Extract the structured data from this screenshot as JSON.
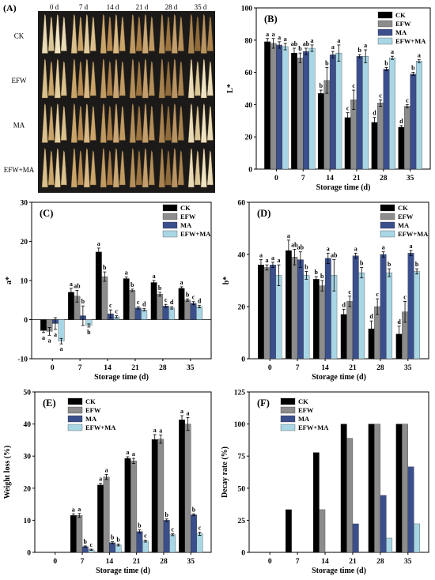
{
  "panel_a": {
    "label": "(A)",
    "columns": [
      "0 d",
      "7 d",
      "14 d",
      "21 d",
      "28 d",
      "35 d"
    ],
    "rows": [
      "CK",
      "EFW",
      "MA",
      "EFW+MA"
    ]
  },
  "chart_data": [
    {
      "panel": "(B)",
      "type": "bar",
      "categories": [
        "0",
        "7",
        "14",
        "21",
        "28",
        "35"
      ],
      "xlabel": "Storage time (d)",
      "ylabel": "L*",
      "ylim": [
        0,
        100
      ],
      "yticks": [
        0,
        20,
        40,
        60,
        80,
        100
      ],
      "legend_position": "top-right",
      "series": [
        {
          "name": "CK",
          "color": "#000000",
          "values": [
            79,
            72,
            47,
            32,
            29,
            26
          ],
          "errors": [
            2,
            3,
            2,
            3,
            3,
            1
          ],
          "letters": [
            "a",
            "ab",
            "b",
            "c",
            "d",
            "d"
          ]
        },
        {
          "name": "EFW",
          "color": "#8c8c8c",
          "values": [
            78,
            69,
            55,
            43,
            41,
            39
          ],
          "errors": [
            3,
            3,
            8,
            6,
            2,
            1
          ],
          "letters": [
            "a",
            "b",
            "b",
            "c",
            "c",
            "c"
          ]
        },
        {
          "name": "MA",
          "color": "#3b4f8c",
          "values": [
            77,
            73,
            71,
            70,
            62,
            59
          ],
          "errors": [
            2,
            2,
            2,
            1,
            1,
            1
          ],
          "letters": [
            "a",
            "ab",
            "a",
            "b",
            "b",
            "b"
          ]
        },
        {
          "name": "EFW+MA",
          "color": "#a9d6e5",
          "values": [
            76,
            75,
            72,
            70,
            69,
            67
          ],
          "errors": [
            2,
            2,
            5,
            4,
            1,
            1
          ],
          "letters": [
            "a",
            "a",
            "a",
            "a",
            "a",
            "a"
          ]
        }
      ]
    },
    {
      "panel": "(C)",
      "type": "bar",
      "categories": [
        "0",
        "7",
        "14",
        "21",
        "28",
        "35"
      ],
      "xlabel": "Storage time (d)",
      "ylabel": "a*",
      "ylim": [
        -10,
        30
      ],
      "yticks": [
        -10,
        0,
        10,
        20,
        30
      ],
      "legend_position": "top-right",
      "series": [
        {
          "name": "CK",
          "color": "#000000",
          "values": [
            -2.8,
            7.0,
            17.3,
            10.5,
            9.5,
            8.0
          ],
          "errors": [
            0.5,
            1.0,
            1.0,
            0.4,
            0.5,
            0.4
          ],
          "letters": [
            "a",
            "a",
            "a",
            "a",
            "a",
            "a"
          ]
        },
        {
          "name": "EFW",
          "color": "#8c8c8c",
          "values": [
            -3.0,
            6.0,
            11.0,
            7.5,
            6.5,
            5.0
          ],
          "errors": [
            1.0,
            1.5,
            1.2,
            0.3,
            0.5,
            0.3
          ],
          "letters": [
            "a",
            "ab",
            "b",
            "b",
            "b",
            "b"
          ]
        },
        {
          "name": "MA",
          "color": "#3b4f8c",
          "values": [
            -1.0,
            1.0,
            1.5,
            3.0,
            3.5,
            4.2
          ],
          "errors": [
            1.5,
            2.5,
            1.0,
            0.3,
            0.4,
            0.4
          ],
          "letters": [
            "a",
            "b",
            "c",
            "c",
            "c",
            "c"
          ]
        },
        {
          "name": "EFW+MA",
          "color": "#a9d6e5",
          "values": [
            -5.5,
            -1.5,
            0.7,
            2.5,
            3.0,
            3.3
          ],
          "errors": [
            0.7,
            0.4,
            0.3,
            0.3,
            0.3,
            0.3
          ],
          "letters": [
            "a",
            "b",
            "c",
            "d",
            "d",
            "d"
          ]
        }
      ]
    },
    {
      "panel": "(D)",
      "type": "bar",
      "categories": [
        "0",
        "7",
        "14",
        "21",
        "28",
        "35"
      ],
      "xlabel": "Storage time (d)",
      "ylabel": "b*",
      "ylim": [
        0,
        60
      ],
      "yticks": [
        0,
        20,
        40,
        60
      ],
      "legend_position": "top-right",
      "series": [
        {
          "name": "CK",
          "color": "#000000",
          "values": [
            36,
            41.5,
            30.5,
            17,
            11.5,
            9.5
          ],
          "errors": [
            2,
            4,
            1,
            2,
            3,
            3
          ],
          "letters": [
            "a",
            "a",
            "b",
            "d",
            "d",
            "d"
          ]
        },
        {
          "name": "EFW",
          "color": "#8c8c8c",
          "values": [
            35,
            39,
            28,
            22,
            20,
            18
          ],
          "errors": [
            1,
            3,
            2,
            2,
            3,
            4
          ],
          "letters": [
            "a",
            "ab",
            "b",
            "c",
            "c",
            "c"
          ]
        },
        {
          "name": "MA",
          "color": "#3b4f8c",
          "values": [
            36,
            38,
            38.5,
            39.5,
            40,
            40.5
          ],
          "errors": [
            1,
            3,
            2,
            1,
            1,
            1
          ],
          "letters": [
            "a",
            "ab",
            "a",
            "a",
            "a",
            "a"
          ]
        },
        {
          "name": "EFW+MA",
          "color": "#a9d6e5",
          "values": [
            32,
            32,
            32,
            33,
            33,
            33.5
          ],
          "errors": [
            4,
            1.5,
            6,
            2,
            1.5,
            1
          ],
          "letters": [
            "a",
            "b",
            "ab",
            "b",
            "b",
            "b"
          ]
        }
      ]
    },
    {
      "panel": "(E)",
      "type": "bar",
      "categories": [
        "0",
        "7",
        "14",
        "21",
        "28",
        "35"
      ],
      "xlabel": "Storage time (d)",
      "ylabel": "Weight loss (%)",
      "ylim": [
        0,
        50
      ],
      "yticks": [
        0,
        10,
        20,
        30,
        40,
        50
      ],
      "legend_position": "top-left",
      "series": [
        {
          "name": "CK",
          "color": "#000000",
          "values": [
            0,
            11.5,
            21,
            29.3,
            35.2,
            41.3
          ],
          "errors": [
            0,
            0.5,
            0.5,
            0.5,
            1.5,
            1.3
          ],
          "letters": [
            "",
            "a",
            "a",
            "a",
            "a",
            "a"
          ]
        },
        {
          "name": "EFW",
          "color": "#8c8c8c",
          "values": [
            0,
            11.5,
            23.5,
            28.5,
            35.3,
            40
          ],
          "errors": [
            0,
            0.6,
            0.8,
            0.8,
            1.3,
            2
          ],
          "letters": [
            "",
            "a",
            "a",
            "a",
            "a",
            "a"
          ]
        },
        {
          "name": "MA",
          "color": "#3b4f8c",
          "values": [
            0,
            1.8,
            3.0,
            6.5,
            10,
            11.7
          ],
          "errors": [
            0,
            0.2,
            0.3,
            0.5,
            0.4,
            0.3
          ],
          "letters": [
            "",
            "b",
            "b",
            "b",
            "b",
            "b"
          ]
        },
        {
          "name": "EFW+MA",
          "color": "#a9d6e5",
          "values": [
            0,
            0.8,
            2.3,
            3.5,
            5.5,
            5.8
          ],
          "errors": [
            0,
            0.2,
            0.3,
            0.3,
            0.3,
            0.5
          ],
          "letters": [
            "",
            "c",
            "b",
            "c",
            "c",
            "c"
          ]
        }
      ]
    },
    {
      "panel": "(F)",
      "type": "bar",
      "categories": [
        "0",
        "7",
        "14",
        "21",
        "28",
        "35"
      ],
      "xlabel": "Storage time (d)",
      "ylabel": "Decay rate (%)",
      "ylim": [
        0,
        125
      ],
      "yticks": [
        0,
        25,
        50,
        75,
        100,
        125
      ],
      "legend_position": "top-left",
      "series": [
        {
          "name": "CK",
          "color": "#000000",
          "values": [
            0,
            33.3,
            77.8,
            100,
            100,
            100
          ]
        },
        {
          "name": "EFW",
          "color": "#8c8c8c",
          "values": [
            0,
            0,
            33.3,
            88.9,
            100,
            100
          ]
        },
        {
          "name": "MA",
          "color": "#3b4f8c",
          "values": [
            0,
            0,
            0,
            22.2,
            44.4,
            66.7
          ]
        },
        {
          "name": "EFW+MA",
          "color": "#a9d6e5",
          "values": [
            0,
            0,
            0,
            0,
            11.1,
            22.2
          ]
        }
      ]
    }
  ]
}
